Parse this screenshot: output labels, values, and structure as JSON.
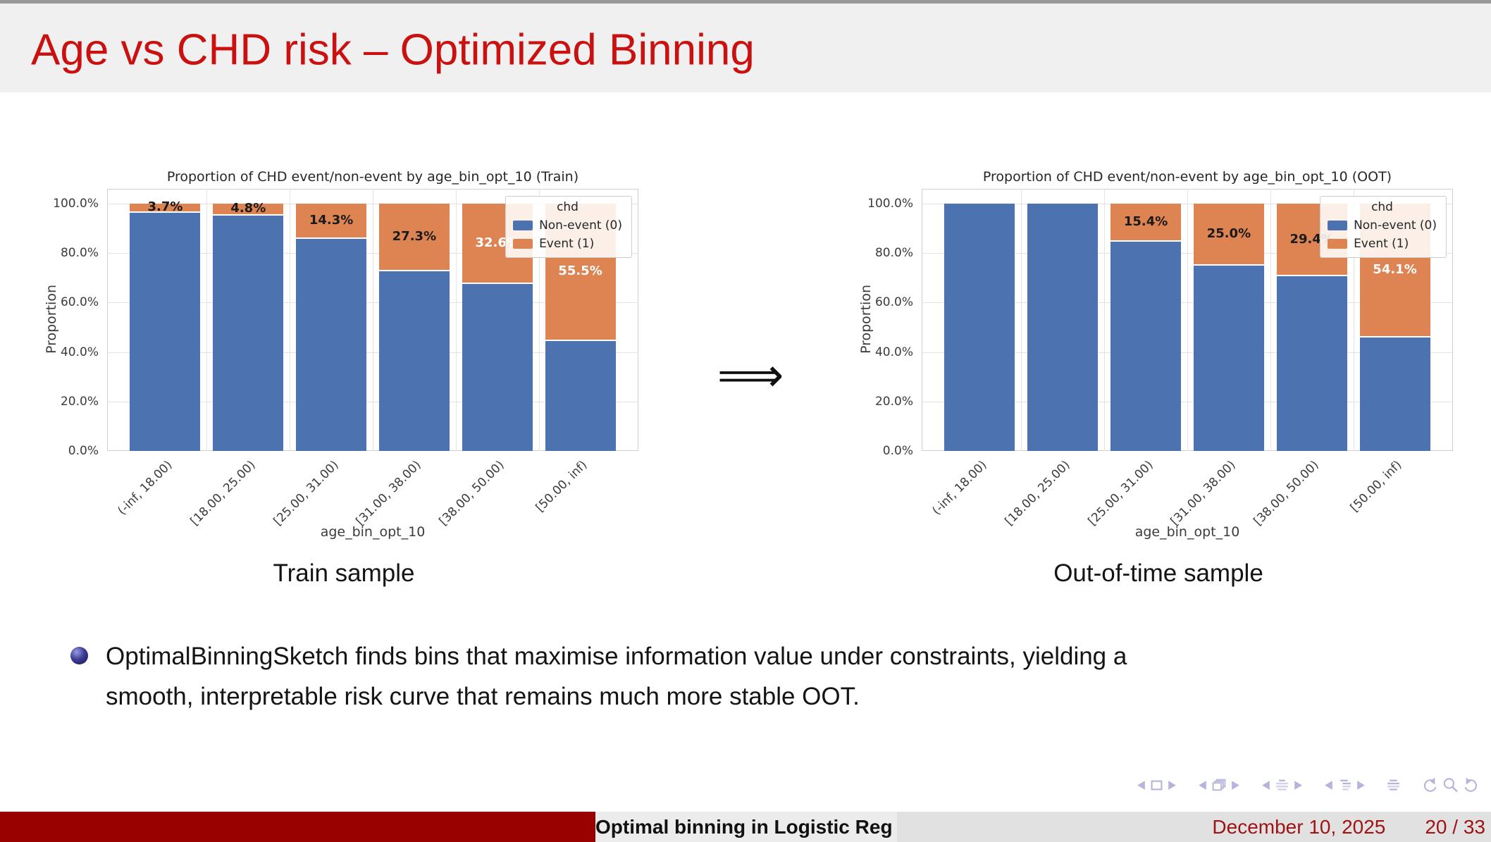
{
  "slide": {
    "title": "Age vs CHD risk – Optimized Binning",
    "arrow_symbol": "⟹",
    "captions": {
      "left": "Train sample",
      "right": "Out-of-time sample"
    },
    "bullet_lines": [
      "OptimalBinningSketch finds bins that maximise information value under constraints, yielding a",
      "smooth, interpretable risk curve that remains much more stable OOT."
    ]
  },
  "footer": {
    "short_title": "Optimal binning in Logistic Reg",
    "date": "December 10, 2025",
    "page": "20 / 33"
  },
  "navigation": {
    "icons": [
      "prev-slide",
      "current-frame",
      "next-slide",
      "prev-frame",
      "frame-overlays",
      "next-frame",
      "prev-section",
      "section-list",
      "next-section",
      "prev-subsection",
      "subsection-list",
      "next-subsection",
      "appendix-list",
      "undo-navigation",
      "search",
      "redo-navigation"
    ]
  },
  "colors": {
    "title_red": "#cb1010",
    "footline_dark_red": "#990000",
    "footline_text_red": "#9e1414",
    "bar_blue": "#4c72b0",
    "bar_orange": "#dd8452",
    "nav_icon": "#b5b5dc",
    "header_bg": "#f0f0f0",
    "grid": "#e3e3e3"
  },
  "chart_data": [
    {
      "type": "bar",
      "stacked": true,
      "title": "Proportion of CHD event/non-event by age_bin_opt_10 (Train)",
      "xlabel": "age_bin_opt_10",
      "ylabel": "Proportion",
      "ylim": [
        0,
        100
      ],
      "ytick_labels": [
        "0.0%",
        "20.0%",
        "40.0%",
        "60.0%",
        "80.0%",
        "100.0%"
      ],
      "grid": true,
      "categories": [
        "(-inf, 18.00)",
        "[18.00, 25.00)",
        "[25.00, 31.00)",
        "[31.00, 38.00)",
        "[38.00, 50.00)",
        "[50.00, inf)"
      ],
      "legend": {
        "title": "chd",
        "entries": [
          "Non-event (0)",
          "Event (1)"
        ],
        "position": "upper right"
      },
      "series": [
        {
          "name": "Non-event (0)",
          "color": "#4c72b0",
          "values_pct": [
            96.3,
            95.2,
            85.7,
            72.7,
            67.4,
            44.5
          ]
        },
        {
          "name": "Event (1)",
          "color": "#dd8452",
          "values_pct": [
            3.7,
            4.8,
            14.3,
            27.3,
            32.6,
            55.5
          ]
        }
      ],
      "bar_labels": [
        {
          "text": "3.7%",
          "color": "#1a1a1a"
        },
        {
          "text": "4.8%",
          "color": "#1a1a1a"
        },
        {
          "text": "14.3%",
          "color": "#1a1a1a"
        },
        {
          "text": "27.3%",
          "color": "#1a1a1a"
        },
        {
          "text": "32.6%",
          "color": "#ffffff"
        },
        {
          "text": "55.5%",
          "color": "#ffffff"
        }
      ]
    },
    {
      "type": "bar",
      "stacked": true,
      "title": "Proportion of CHD event/non-event by age_bin_opt_10 (OOT)",
      "xlabel": "age_bin_opt_10",
      "ylabel": "Proportion",
      "ylim": [
        0,
        100
      ],
      "ytick_labels": [
        "0.0%",
        "20.0%",
        "40.0%",
        "60.0%",
        "80.0%",
        "100.0%"
      ],
      "grid": true,
      "categories": [
        "(-inf, 18.00)",
        "[18.00, 25.00)",
        "[25.00, 31.00)",
        "[31.00, 38.00)",
        "[38.00, 50.00)",
        "[50.00, inf)"
      ],
      "legend": {
        "title": "chd",
        "entries": [
          "Non-event (0)",
          "Event (1)"
        ],
        "position": "upper right"
      },
      "series": [
        {
          "name": "Non-event (0)",
          "color": "#4c72b0",
          "values_pct": [
            100,
            100,
            84.6,
            75.0,
            70.6,
            45.9
          ]
        },
        {
          "name": "Event (1)",
          "color": "#dd8452",
          "values_pct": [
            0,
            0,
            15.4,
            25.0,
            29.4,
            54.1
          ]
        }
      ],
      "bar_labels": [
        {
          "text": "",
          "color": "#1a1a1a"
        },
        {
          "text": "",
          "color": "#1a1a1a"
        },
        {
          "text": "15.4%",
          "color": "#1a1a1a"
        },
        {
          "text": "25.0%",
          "color": "#1a1a1a"
        },
        {
          "text": "29.4%",
          "color": "#1a1a1a"
        },
        {
          "text": "54.1%",
          "color": "#ffffff"
        }
      ]
    }
  ]
}
